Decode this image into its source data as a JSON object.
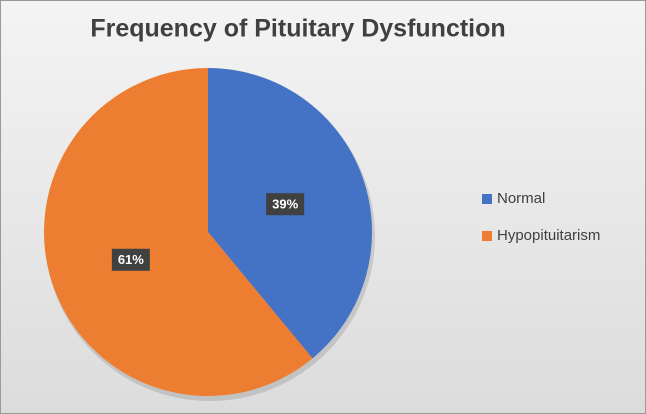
{
  "chart_data": {
    "type": "pie",
    "title": "Frequency of Pituitary Dysfunction",
    "categories": [
      "Normal",
      "Hypopituitarism"
    ],
    "values": [
      39,
      61
    ],
    "value_labels": [
      "39%",
      "61%"
    ],
    "colors": [
      "#4472c4",
      "#ed7d31"
    ],
    "legend": "right"
  }
}
